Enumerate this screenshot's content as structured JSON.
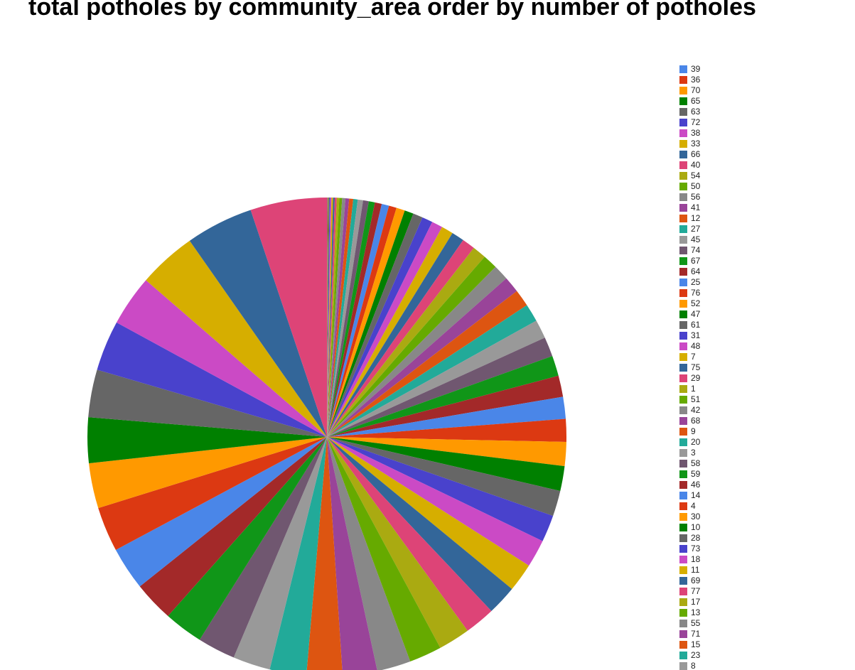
{
  "chart_data": {
    "type": "pie",
    "title": "total potholes by community_area order by number of potholes",
    "categories": [
      "39",
      "36",
      "70",
      "65",
      "63",
      "72",
      "38",
      "33",
      "66",
      "40",
      "54",
      "50",
      "56",
      "41",
      "12",
      "27",
      "45",
      "74",
      "67",
      "64",
      "25",
      "76",
      "52",
      "47",
      "61",
      "31",
      "48",
      "7",
      "75",
      "29",
      "1",
      "51",
      "42",
      "68",
      "9",
      "20",
      "3",
      "58",
      "59",
      "46",
      "14",
      "4",
      "30",
      "10",
      "28",
      "73",
      "18",
      "11",
      "69",
      "77",
      "17",
      "13",
      "55",
      "71",
      "15",
      "23",
      "8",
      null,
      null,
      null,
      null,
      null,
      null,
      null,
      null,
      null,
      null,
      null,
      null,
      null
    ],
    "values": [
      1,
      1,
      1,
      1,
      2,
      2,
      3,
      4,
      4,
      5,
      6,
      7,
      8,
      9,
      10,
      11,
      13,
      14,
      15,
      17,
      18,
      19,
      21,
      22,
      24,
      26,
      27,
      29,
      31,
      32,
      34,
      36,
      38,
      40,
      42,
      44,
      46,
      48,
      50,
      52,
      54,
      56,
      59,
      61,
      63,
      66,
      68,
      70,
      73,
      75,
      78,
      80,
      83,
      85,
      88,
      90,
      92,
      93,
      96,
      99,
      106,
      110,
      111,
      112,
      117,
      124,
      125,
      143,
      166,
      188
    ],
    "colors": [
      "#4a86e8",
      "#dc3912",
      "#ff9900",
      "#008000",
      "#666666",
      "#4942cc",
      "#cb4ac5",
      "#d6ae00",
      "#336699",
      "#dd4477",
      "#aaaa11",
      "#66aa00",
      "#888888",
      "#994499",
      "#dd5511",
      "#22aa99",
      "#999999",
      "#705770",
      "#109618",
      "#a32929"
    ],
    "legend": "right"
  }
}
